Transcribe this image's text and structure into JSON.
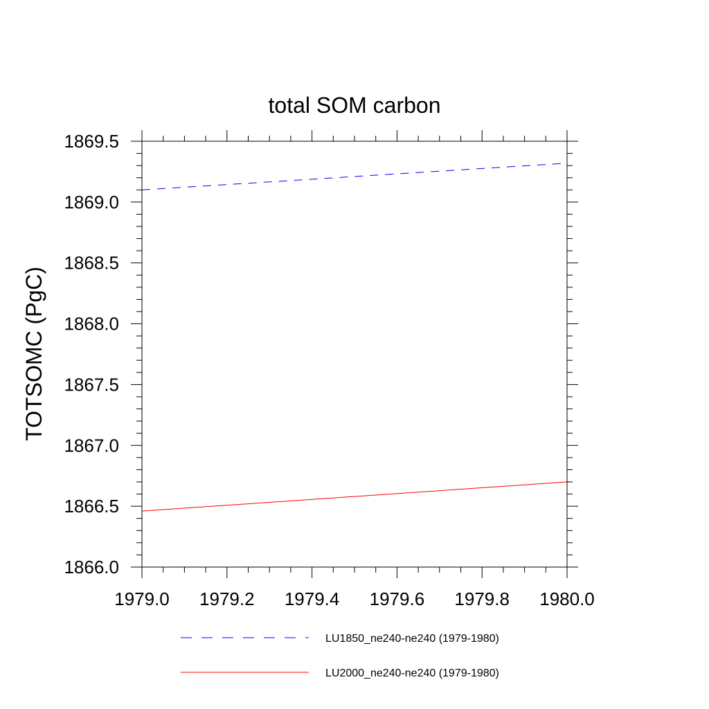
{
  "chart_data": {
    "type": "line",
    "title": "total SOM carbon",
    "xlabel": "",
    "ylabel": "TOTSOMC  (PgC)",
    "xlim": [
      1979.0,
      1980.0
    ],
    "ylim": [
      1866.0,
      1869.5
    ],
    "x_ticks": [
      "1979.0",
      "1979.2",
      "1979.4",
      "1979.6",
      "1979.8",
      "1980.0"
    ],
    "y_ticks": [
      "1866.0",
      "1866.5",
      "1867.0",
      "1867.5",
      "1868.0",
      "1868.5",
      "1869.0",
      "1869.5"
    ],
    "grid": false,
    "legend": "bottom",
    "series": [
      {
        "name": "LU1850_ne240-ne240 (1979-1980)",
        "color": "#0000ff",
        "style": "dashed",
        "x": [
          1979.0,
          1980.0
        ],
        "y": [
          1869.1,
          1869.32
        ]
      },
      {
        "name": "LU2000_ne240-ne240 (1979-1980)",
        "color": "#ff0000",
        "style": "solid",
        "x": [
          1979.0,
          1980.0
        ],
        "y": [
          1866.46,
          1866.7
        ]
      }
    ]
  }
}
